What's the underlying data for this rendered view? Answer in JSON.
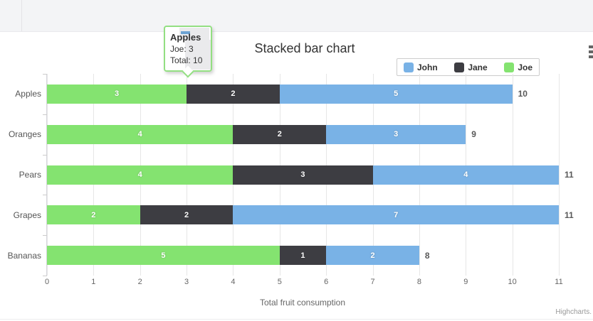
{
  "chart": {
    "title": "Stacked bar chart",
    "axis_title": "Total fruit consumption",
    "credits": "Highcharts.",
    "colors": {
      "john": "#79b2e6",
      "jane": "#3d3d42",
      "joe": "#84e370",
      "grid": "#e6e6e6",
      "band": "#f3f4f6"
    }
  },
  "tooltip": {
    "category": "Apples",
    "series_line": "Joe: 3",
    "total_line": "Total: 10"
  },
  "chart_data": {
    "type": "bar",
    "stacked": true,
    "title": "Stacked bar chart",
    "categories": [
      "Apples",
      "Oranges",
      "Pears",
      "Grapes",
      "Bananas"
    ],
    "series": [
      {
        "name": "John",
        "color": "#79b2e6",
        "values": [
          5,
          3,
          4,
          7,
          2
        ]
      },
      {
        "name": "Jane",
        "color": "#3d3d42",
        "values": [
          2,
          2,
          3,
          2,
          1
        ]
      },
      {
        "name": "Joe",
        "color": "#84e370",
        "values": [
          3,
          4,
          4,
          2,
          5
        ]
      }
    ],
    "stack_order": [
      "Joe",
      "Jane",
      "John"
    ],
    "totals": [
      10,
      9,
      11,
      11,
      8
    ],
    "xlabel": "Total fruit consumption",
    "ylabel": "",
    "value_axis_ticks": [
      0,
      1,
      2,
      3,
      4,
      5,
      6,
      7,
      8,
      9,
      10,
      11
    ],
    "value_axis_range": [
      0,
      11
    ],
    "legend_position": "top-right",
    "legend_entries": [
      "John",
      "Jane",
      "Joe"
    ],
    "grid": true
  }
}
